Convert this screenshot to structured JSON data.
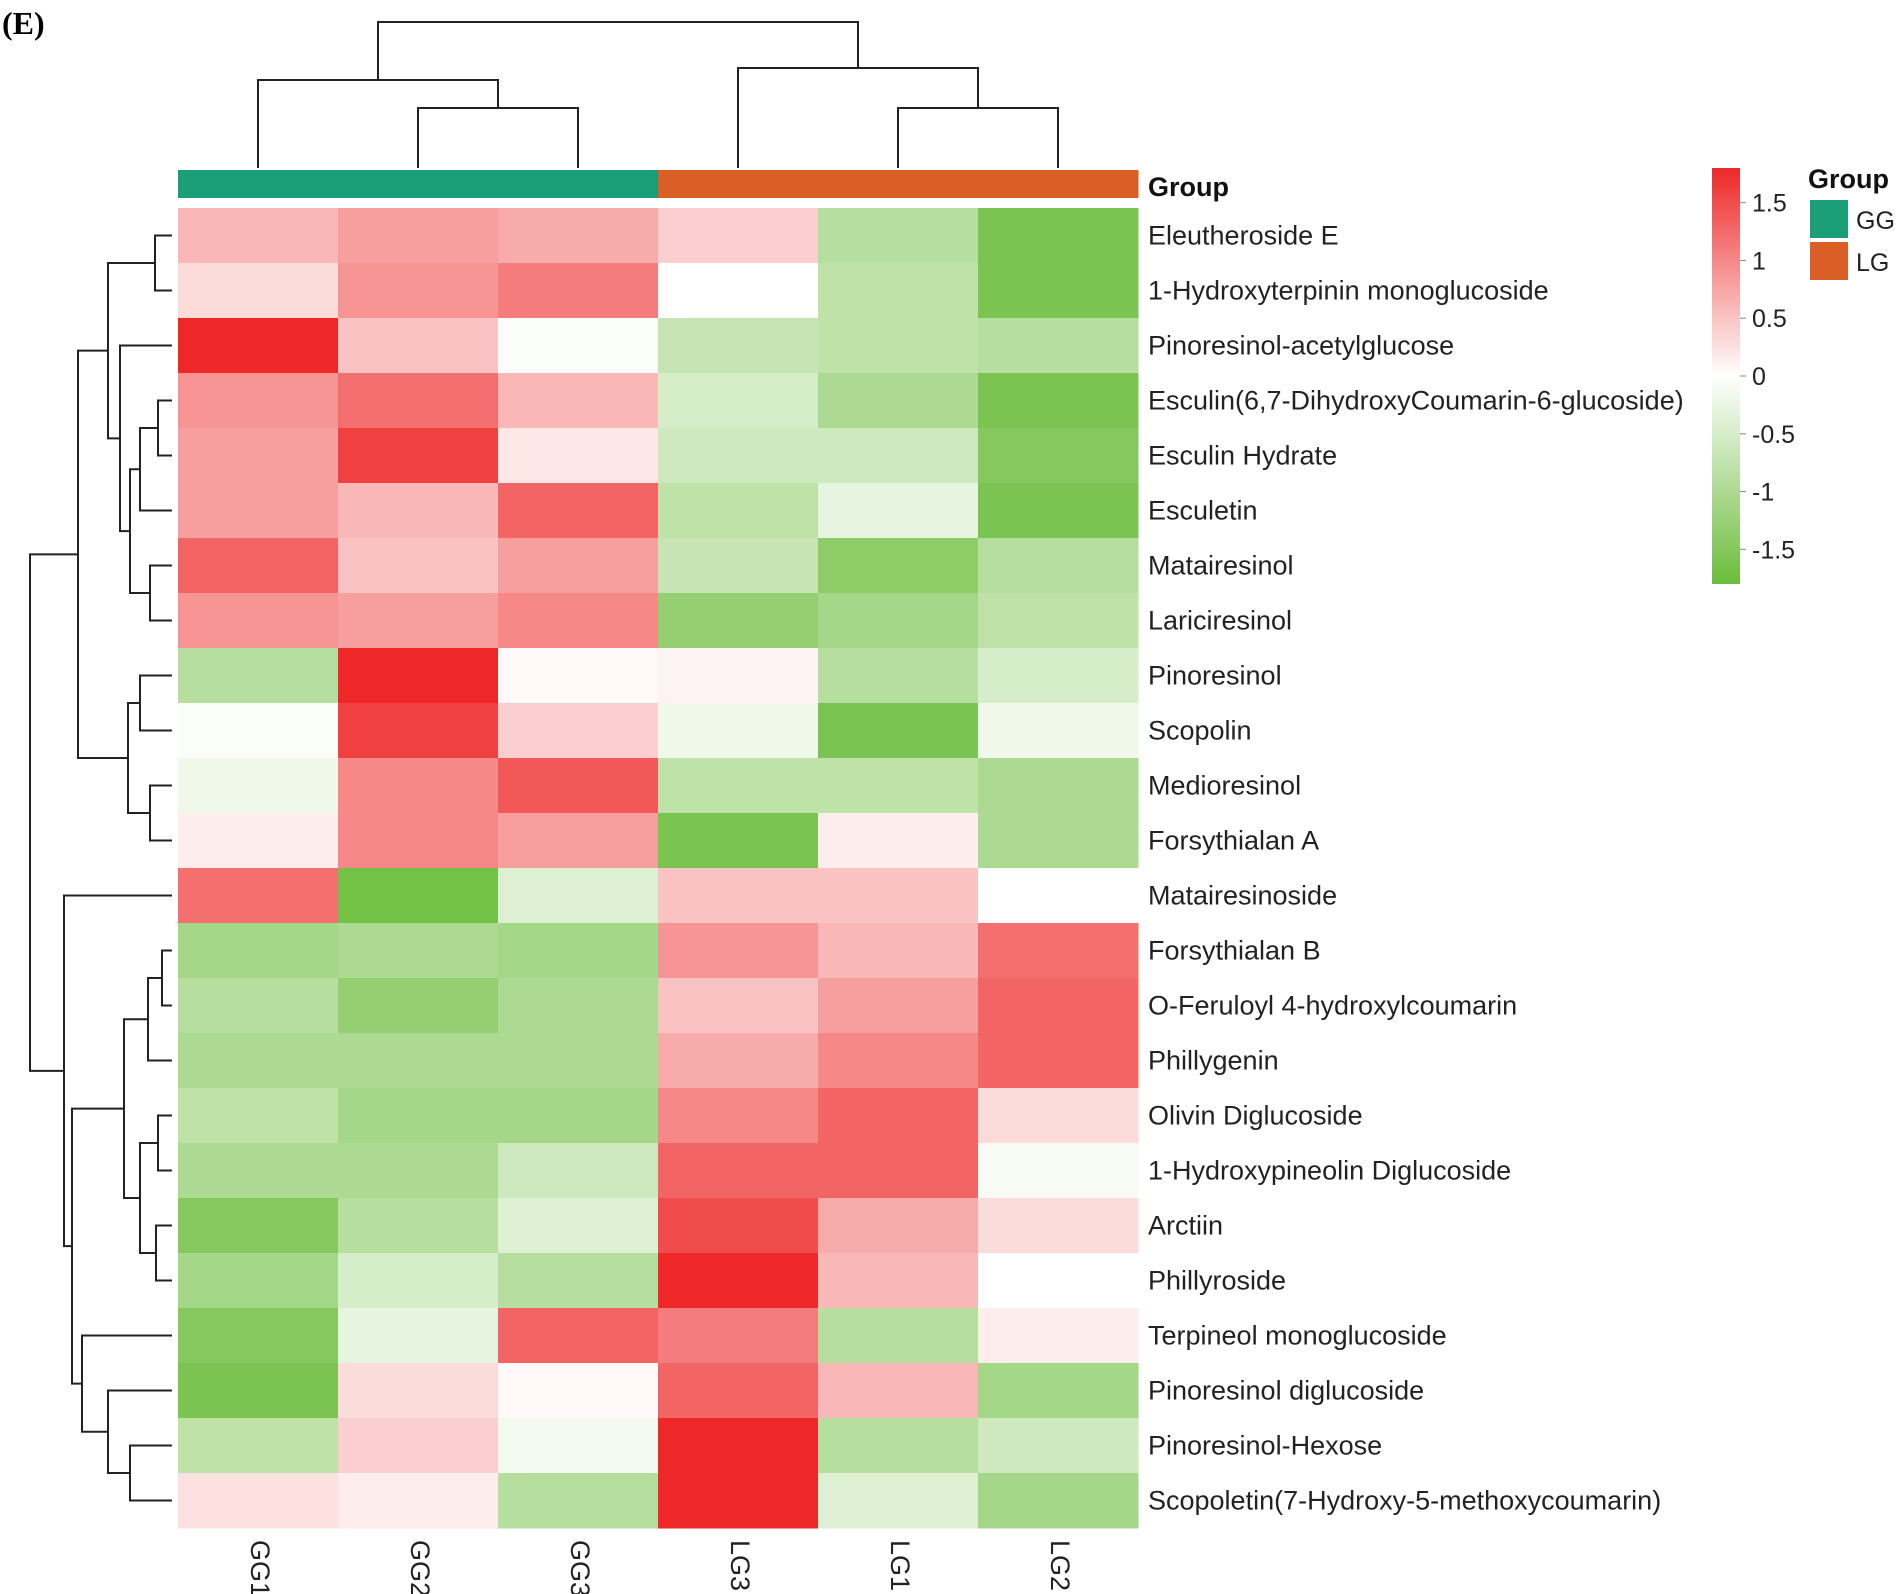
{
  "panel_label": "(E)",
  "colors": {
    "high": "#ee2828",
    "mid": "#ffffff",
    "low": "#6cbd3c",
    "GG": "#1a9e77",
    "LG": "#d95f26"
  },
  "chart_data": {
    "type": "heatmap",
    "title": "",
    "columns": [
      "GG1",
      "GG2",
      "GG3",
      "LG3",
      "LG1",
      "LG2"
    ],
    "column_groups": [
      "GG",
      "GG",
      "GG",
      "LG",
      "LG",
      "LG"
    ],
    "rows": [
      "Eleutheroside E",
      "1-Hydroxyterpinin monoglucoside",
      "Pinoresinol-acetylglucose",
      "Esculin(6,7-DihydroxyCoumarin-6-glucoside)",
      "Esculin Hydrate",
      "Esculetin",
      "Matairesinol",
      "Lariciresinol",
      "Pinoresinol",
      "Scopolin",
      "Medioresinol",
      "Forsythialan A",
      "Matairesinoside",
      "Forsythialan B",
      "O-Feruloyl 4-hydroxylcoumarin",
      "Phillygenin",
      "Olivin Diglucoside",
      "1-Hydroxypineolin Diglucoside",
      "Arctiin",
      "Phillyroside",
      "Terpineol monoglucoside",
      "Pinoresinol diglucoside",
      "Pinoresinol-Hexose",
      "Scopoletin(7-Hydroxy-5-methoxycoumarin)"
    ],
    "values": [
      [
        0.6,
        0.8,
        0.7,
        0.4,
        -0.9,
        -1.6
      ],
      [
        0.3,
        0.9,
        1.1,
        0.0,
        -0.8,
        -1.6
      ],
      [
        1.8,
        0.5,
        -0.05,
        -0.7,
        -0.8,
        -0.9
      ],
      [
        0.9,
        1.2,
        0.6,
        -0.5,
        -1.0,
        -1.6
      ],
      [
        0.8,
        1.6,
        0.2,
        -0.6,
        -0.6,
        -1.5
      ],
      [
        0.8,
        0.6,
        1.3,
        -0.8,
        -0.3,
        -1.6
      ],
      [
        1.3,
        0.5,
        0.8,
        -0.7,
        -1.4,
        -0.9
      ],
      [
        0.9,
        0.8,
        1.0,
        -1.3,
        -1.1,
        -0.8
      ],
      [
        -0.9,
        1.8,
        0.05,
        0.1,
        -0.9,
        -0.5
      ],
      [
        -0.05,
        1.6,
        0.4,
        -0.2,
        -1.6,
        -0.2
      ],
      [
        -0.2,
        1.0,
        1.4,
        -0.8,
        -0.8,
        -1.0
      ],
      [
        0.15,
        1.0,
        0.8,
        -1.6,
        0.15,
        -1.0
      ],
      [
        1.2,
        -1.7,
        -0.4,
        0.5,
        0.5,
        0.0
      ],
      [
        -1.1,
        -1.0,
        -1.1,
        0.9,
        0.6,
        1.2
      ],
      [
        -0.9,
        -1.3,
        -1.0,
        0.5,
        0.8,
        1.3
      ],
      [
        -1.0,
        -1.0,
        -1.0,
        0.7,
        1.0,
        1.3
      ],
      [
        -0.8,
        -1.1,
        -1.1,
        1.0,
        1.3,
        0.3
      ],
      [
        -1.0,
        -1.0,
        -0.6,
        1.3,
        1.3,
        -0.1
      ],
      [
        -1.5,
        -0.9,
        -0.4,
        1.5,
        0.7,
        0.3
      ],
      [
        -1.1,
        -0.5,
        -0.9,
        1.8,
        0.6,
        0.0
      ],
      [
        -1.5,
        -0.3,
        1.3,
        1.1,
        -0.9,
        0.15
      ],
      [
        -1.6,
        0.3,
        0.05,
        1.3,
        0.6,
        -1.1
      ],
      [
        -0.8,
        0.4,
        -0.15,
        1.9,
        -0.9,
        -0.6
      ],
      [
        0.25,
        0.15,
        -0.9,
        1.9,
        -0.4,
        -1.1
      ]
    ],
    "scale_range": [
      -1.8,
      1.8
    ],
    "scale_ticks": [
      1.5,
      1,
      0.5,
      0,
      -0.5,
      -1,
      -1.5
    ],
    "scale_tick_labels": [
      "1.5",
      "1",
      "0.5",
      "0",
      "-0.5",
      "-1",
      "-1.5"
    ],
    "annotation_label": "Group",
    "legend": {
      "title": "Group",
      "entries": [
        "GG",
        "LG"
      ],
      "placement": "top-right"
    }
  }
}
